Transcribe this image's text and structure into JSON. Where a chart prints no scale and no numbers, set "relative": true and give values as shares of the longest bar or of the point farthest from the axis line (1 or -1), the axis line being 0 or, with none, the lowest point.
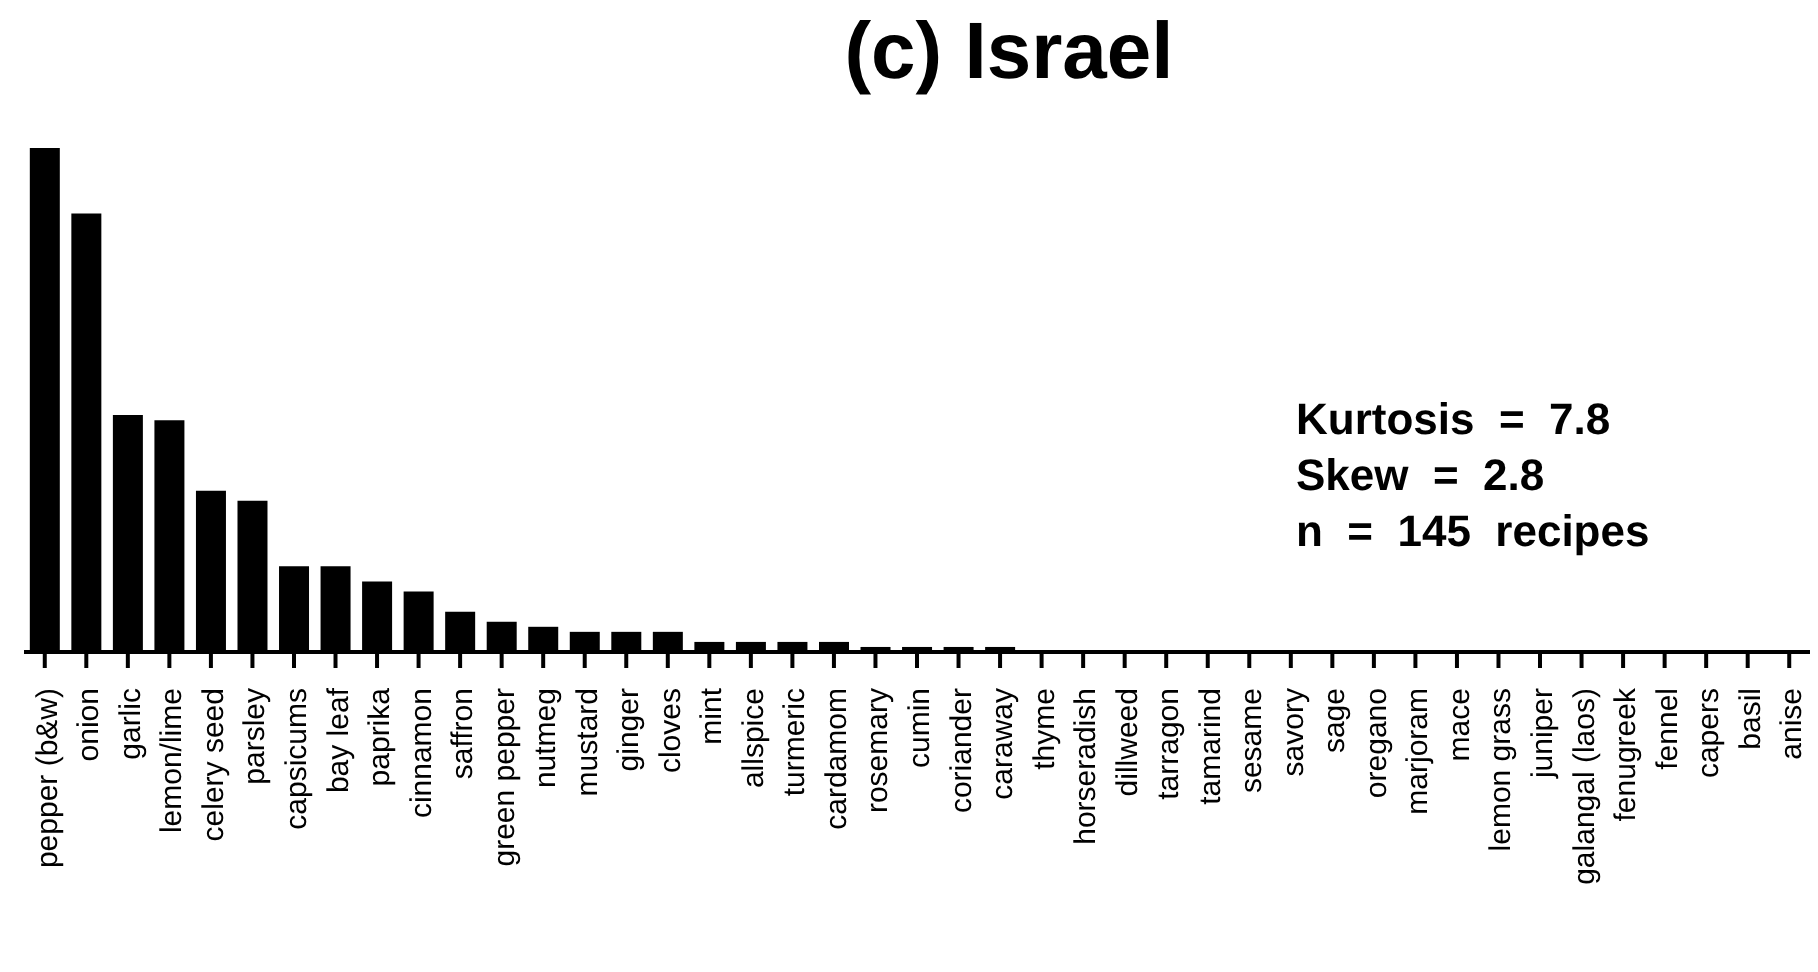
{
  "chart_data": {
    "type": "bar",
    "title": "(c) Israel",
    "relative": true,
    "categories": [
      "pepper (b&w)",
      "onion",
      "garlic",
      "lemon/lime",
      "celery seed",
      "parsley",
      "capsicums",
      "bay leaf",
      "paprika",
      "cinnamon",
      "saffron",
      "green pepper",
      "nutmeg",
      "mustard",
      "ginger",
      "cloves",
      "mint",
      "allspice",
      "turmeric",
      "cardamom",
      "rosemary",
      "cumin",
      "coriander",
      "caraway",
      "thyme",
      "horseradish",
      "dillweed",
      "tarragon",
      "tamarind",
      "sesame",
      "savory",
      "sage",
      "oregano",
      "marjoram",
      "mace",
      "lemon grass",
      "juniper",
      "galangal (laos)",
      "fenugreek",
      "fennel",
      "capers",
      "basil",
      "anise"
    ],
    "values": [
      1,
      0.87,
      0.47,
      0.46,
      0.32,
      0.3,
      0.17,
      0.17,
      0.14,
      0.12,
      0.08,
      0.06,
      0.05,
      0.04,
      0.04,
      0.04,
      0.02,
      0.02,
      0.02,
      0.02,
      0.01,
      0.01,
      0.01,
      0.01,
      0,
      0,
      0,
      0,
      0,
      0,
      0,
      0,
      0,
      0,
      0,
      0,
      0,
      0,
      0,
      0,
      0,
      0,
      0
    ],
    "color": "#000000",
    "annotations": [
      "Kurtosis  =  7.8",
      "Skew  =  2.8",
      "n  =  145  recipes"
    ]
  }
}
